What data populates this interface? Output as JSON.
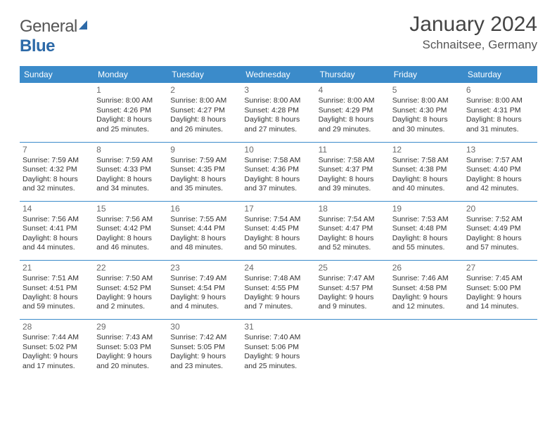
{
  "logo": {
    "word1": "General",
    "word2": "Blue"
  },
  "title": "January 2024",
  "location": "Schnaitsee, Germany",
  "headers": [
    "Sunday",
    "Monday",
    "Tuesday",
    "Wednesday",
    "Thursday",
    "Friday",
    "Saturday"
  ],
  "colors": {
    "header_bg": "#3b8bca",
    "header_fg": "#ffffff",
    "border": "#3b8bca",
    "text": "#333333",
    "logo_gray": "#555555",
    "logo_blue": "#2d6aa8"
  },
  "weeks": [
    [
      {
        "num": "",
        "lines": []
      },
      {
        "num": "1",
        "lines": [
          "Sunrise: 8:00 AM",
          "Sunset: 4:26 PM",
          "Daylight: 8 hours and 25 minutes."
        ]
      },
      {
        "num": "2",
        "lines": [
          "Sunrise: 8:00 AM",
          "Sunset: 4:27 PM",
          "Daylight: 8 hours and 26 minutes."
        ]
      },
      {
        "num": "3",
        "lines": [
          "Sunrise: 8:00 AM",
          "Sunset: 4:28 PM",
          "Daylight: 8 hours and 27 minutes."
        ]
      },
      {
        "num": "4",
        "lines": [
          "Sunrise: 8:00 AM",
          "Sunset: 4:29 PM",
          "Daylight: 8 hours and 29 minutes."
        ]
      },
      {
        "num": "5",
        "lines": [
          "Sunrise: 8:00 AM",
          "Sunset: 4:30 PM",
          "Daylight: 8 hours and 30 minutes."
        ]
      },
      {
        "num": "6",
        "lines": [
          "Sunrise: 8:00 AM",
          "Sunset: 4:31 PM",
          "Daylight: 8 hours and 31 minutes."
        ]
      }
    ],
    [
      {
        "num": "7",
        "lines": [
          "Sunrise: 7:59 AM",
          "Sunset: 4:32 PM",
          "Daylight: 8 hours and 32 minutes."
        ]
      },
      {
        "num": "8",
        "lines": [
          "Sunrise: 7:59 AM",
          "Sunset: 4:33 PM",
          "Daylight: 8 hours and 34 minutes."
        ]
      },
      {
        "num": "9",
        "lines": [
          "Sunrise: 7:59 AM",
          "Sunset: 4:35 PM",
          "Daylight: 8 hours and 35 minutes."
        ]
      },
      {
        "num": "10",
        "lines": [
          "Sunrise: 7:58 AM",
          "Sunset: 4:36 PM",
          "Daylight: 8 hours and 37 minutes."
        ]
      },
      {
        "num": "11",
        "lines": [
          "Sunrise: 7:58 AM",
          "Sunset: 4:37 PM",
          "Daylight: 8 hours and 39 minutes."
        ]
      },
      {
        "num": "12",
        "lines": [
          "Sunrise: 7:58 AM",
          "Sunset: 4:38 PM",
          "Daylight: 8 hours and 40 minutes."
        ]
      },
      {
        "num": "13",
        "lines": [
          "Sunrise: 7:57 AM",
          "Sunset: 4:40 PM",
          "Daylight: 8 hours and 42 minutes."
        ]
      }
    ],
    [
      {
        "num": "14",
        "lines": [
          "Sunrise: 7:56 AM",
          "Sunset: 4:41 PM",
          "Daylight: 8 hours and 44 minutes."
        ]
      },
      {
        "num": "15",
        "lines": [
          "Sunrise: 7:56 AM",
          "Sunset: 4:42 PM",
          "Daylight: 8 hours and 46 minutes."
        ]
      },
      {
        "num": "16",
        "lines": [
          "Sunrise: 7:55 AM",
          "Sunset: 4:44 PM",
          "Daylight: 8 hours and 48 minutes."
        ]
      },
      {
        "num": "17",
        "lines": [
          "Sunrise: 7:54 AM",
          "Sunset: 4:45 PM",
          "Daylight: 8 hours and 50 minutes."
        ]
      },
      {
        "num": "18",
        "lines": [
          "Sunrise: 7:54 AM",
          "Sunset: 4:47 PM",
          "Daylight: 8 hours and 52 minutes."
        ]
      },
      {
        "num": "19",
        "lines": [
          "Sunrise: 7:53 AM",
          "Sunset: 4:48 PM",
          "Daylight: 8 hours and 55 minutes."
        ]
      },
      {
        "num": "20",
        "lines": [
          "Sunrise: 7:52 AM",
          "Sunset: 4:49 PM",
          "Daylight: 8 hours and 57 minutes."
        ]
      }
    ],
    [
      {
        "num": "21",
        "lines": [
          "Sunrise: 7:51 AM",
          "Sunset: 4:51 PM",
          "Daylight: 8 hours and 59 minutes."
        ]
      },
      {
        "num": "22",
        "lines": [
          "Sunrise: 7:50 AM",
          "Sunset: 4:52 PM",
          "Daylight: 9 hours and 2 minutes."
        ]
      },
      {
        "num": "23",
        "lines": [
          "Sunrise: 7:49 AM",
          "Sunset: 4:54 PM",
          "Daylight: 9 hours and 4 minutes."
        ]
      },
      {
        "num": "24",
        "lines": [
          "Sunrise: 7:48 AM",
          "Sunset: 4:55 PM",
          "Daylight: 9 hours and 7 minutes."
        ]
      },
      {
        "num": "25",
        "lines": [
          "Sunrise: 7:47 AM",
          "Sunset: 4:57 PM",
          "Daylight: 9 hours and 9 minutes."
        ]
      },
      {
        "num": "26",
        "lines": [
          "Sunrise: 7:46 AM",
          "Sunset: 4:58 PM",
          "Daylight: 9 hours and 12 minutes."
        ]
      },
      {
        "num": "27",
        "lines": [
          "Sunrise: 7:45 AM",
          "Sunset: 5:00 PM",
          "Daylight: 9 hours and 14 minutes."
        ]
      }
    ],
    [
      {
        "num": "28",
        "lines": [
          "Sunrise: 7:44 AM",
          "Sunset: 5:02 PM",
          "Daylight: 9 hours and 17 minutes."
        ]
      },
      {
        "num": "29",
        "lines": [
          "Sunrise: 7:43 AM",
          "Sunset: 5:03 PM",
          "Daylight: 9 hours and 20 minutes."
        ]
      },
      {
        "num": "30",
        "lines": [
          "Sunrise: 7:42 AM",
          "Sunset: 5:05 PM",
          "Daylight: 9 hours and 23 minutes."
        ]
      },
      {
        "num": "31",
        "lines": [
          "Sunrise: 7:40 AM",
          "Sunset: 5:06 PM",
          "Daylight: 9 hours and 25 minutes."
        ]
      },
      {
        "num": "",
        "lines": []
      },
      {
        "num": "",
        "lines": []
      },
      {
        "num": "",
        "lines": []
      }
    ]
  ]
}
